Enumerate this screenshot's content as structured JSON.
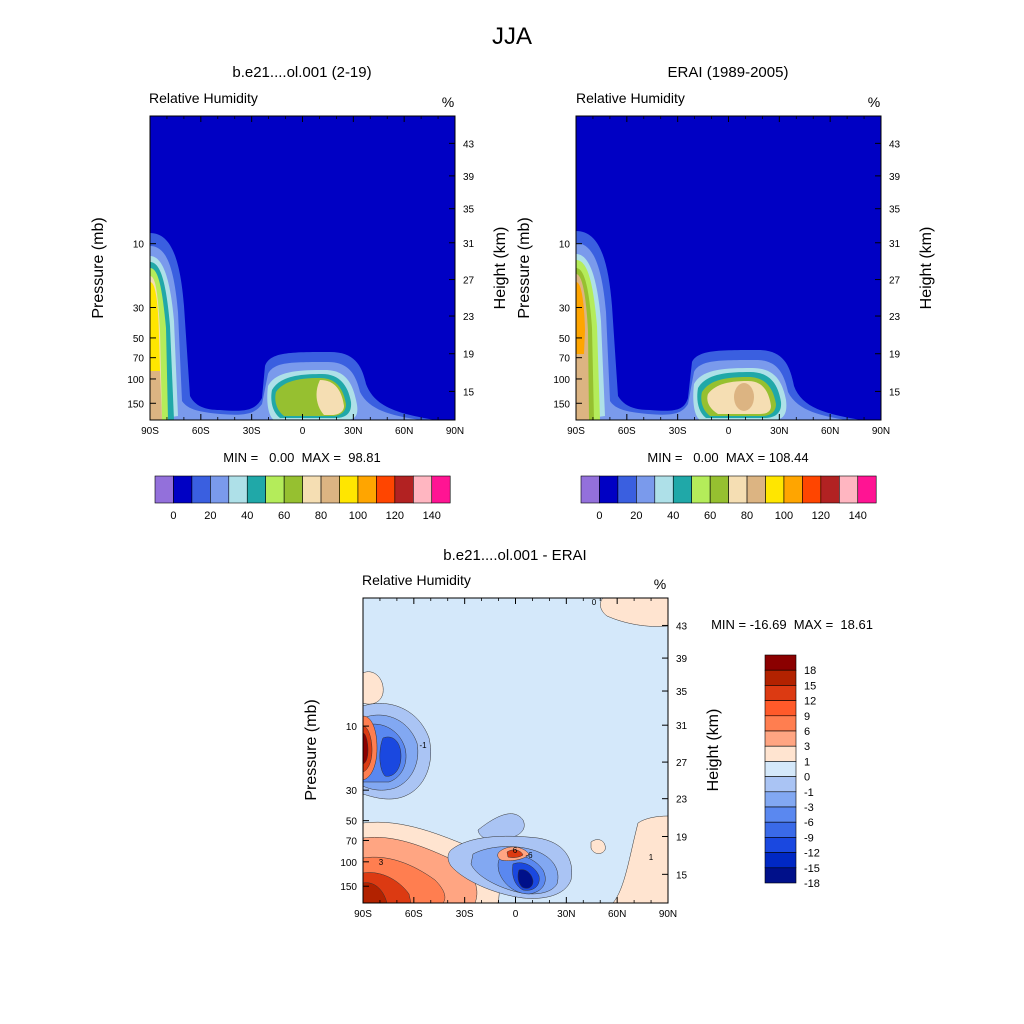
{
  "figure": {
    "title": "JJA"
  },
  "panel_left": {
    "title": "b.e21....ol.001 (2-19)",
    "left_label": "Relative Humidity",
    "unit": "%",
    "ylabel": "Pressure (mb)",
    "ylabel_right": "Height (km)",
    "minmax": "MIN =   0.00  MAX =  98.81"
  },
  "panel_right": {
    "title": "ERAI (1989-2005)",
    "left_label": "Relative Humidity",
    "unit": "%",
    "ylabel": "Pressure (mb)",
    "ylabel_right": "Height (km)",
    "minmax": "MIN =   0.00  MAX = 108.44"
  },
  "panel_diff": {
    "title": "b.e21....ol.001 - ERAI",
    "left_label": "Relative Humidity",
    "unit": "%",
    "ylabel": "Pressure (mb)",
    "ylabel_right": "Height (km)",
    "minmax": "MIN = -16.69  MAX =  18.61"
  },
  "chart_data": [
    {
      "type": "heatmap",
      "panel": "model",
      "title": "b.e21....ol.001 (2-19)",
      "variable": "Relative Humidity",
      "units": "%",
      "xlabel": "",
      "ylabel": "Pressure (mb)",
      "ylabel_right": "Height (km)",
      "x_ticks": [
        "90S",
        "60S",
        "30S",
        "0",
        "30N",
        "60N",
        "90N"
      ],
      "y_ticks": [
        "10",
        "30",
        "50",
        "70",
        "100",
        "150"
      ],
      "y_right_ticks": [
        "43",
        "39",
        "35",
        "31",
        "27",
        "23",
        "19",
        "15"
      ],
      "min": 0.0,
      "max": 98.81,
      "colorbar": {
        "ticks": [
          "0",
          "20",
          "40",
          "60",
          "80",
          "100",
          "120",
          "140"
        ]
      }
    },
    {
      "type": "heatmap",
      "panel": "obs",
      "title": "ERAI (1989-2005)",
      "variable": "Relative Humidity",
      "units": "%",
      "xlabel": "",
      "ylabel": "Pressure (mb)",
      "ylabel_right": "Height (km)",
      "x_ticks": [
        "90S",
        "60S",
        "30S",
        "0",
        "30N",
        "60N",
        "90N"
      ],
      "y_ticks": [
        "10",
        "30",
        "50",
        "70",
        "100",
        "150"
      ],
      "y_right_ticks": [
        "43",
        "39",
        "35",
        "31",
        "27",
        "23",
        "19",
        "15"
      ],
      "min": 0.0,
      "max": 108.44,
      "colorbar": {
        "ticks": [
          "0",
          "20",
          "40",
          "60",
          "80",
          "100",
          "120",
          "140"
        ]
      }
    },
    {
      "type": "heatmap",
      "panel": "difference",
      "title": "b.e21....ol.001 - ERAI",
      "variable": "Relative Humidity",
      "units": "%",
      "xlabel": "",
      "ylabel": "Pressure (mb)",
      "ylabel_right": "Height (km)",
      "x_ticks": [
        "90S",
        "60S",
        "30S",
        "0",
        "30N",
        "60N",
        "90N"
      ],
      "y_ticks": [
        "10",
        "30",
        "50",
        "70",
        "100",
        "150"
      ],
      "y_right_ticks": [
        "43",
        "39",
        "35",
        "31",
        "27",
        "23",
        "19",
        "15"
      ],
      "min": -16.69,
      "max": 18.61,
      "contour_labels": [
        "0",
        "-1",
        "3",
        "-6",
        "6",
        "1"
      ],
      "colorbar": {
        "ticks": [
          "18",
          "15",
          "12",
          "9",
          "6",
          "3",
          "1",
          "0",
          "-1",
          "-3",
          "-6",
          "-9",
          "-12",
          "-15",
          "-18"
        ]
      }
    }
  ],
  "colors": {
    "background_field": "#0000c4",
    "abs_colorbar": [
      "#9370db",
      "#0000c4",
      "#3a5fe0",
      "#7a9aec",
      "#aee0e8",
      "#20a8a8",
      "#b4ec5a",
      "#96c030",
      "#f5deb3",
      "#dcb482",
      "#ffe600",
      "#ffa500",
      "#ff4500",
      "#b22222",
      "#ffb6c1",
      "#ff1493"
    ],
    "diff_colorbar": [
      "#8b0000",
      "#b22200",
      "#dc3a12",
      "#ff5a2a",
      "#ff7e50",
      "#ffa582",
      "#ffe4d0",
      "#d4e8fa",
      "#aac4f4",
      "#82a8f2",
      "#5a88f0",
      "#3a6ae8",
      "#1a48e0",
      "#0028c4",
      "#00108a"
    ],
    "diff_field": "#d4e8fa"
  }
}
